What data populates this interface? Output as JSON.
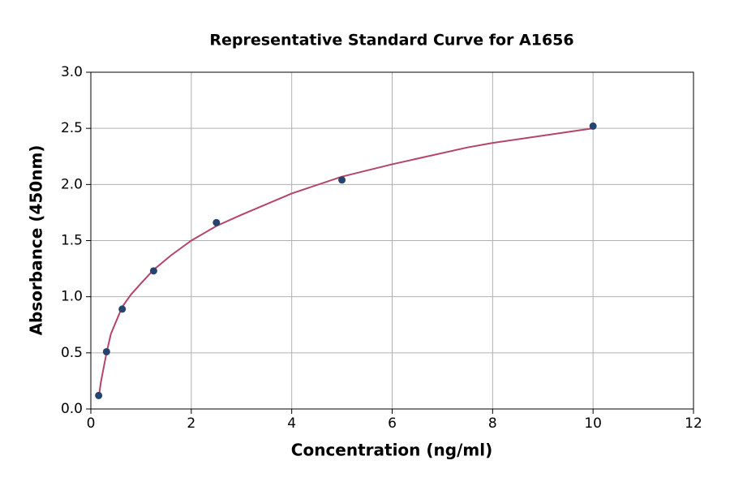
{
  "chart_data": {
    "type": "scatter",
    "title": "Representative Standard Curve for A1656",
    "x_label": "Concentration (ng/ml)",
    "y_label": "Absorbance (450nm)",
    "xlim": [
      0,
      12
    ],
    "xticks": [
      0,
      2,
      4,
      6,
      8,
      10,
      12
    ],
    "ylim": [
      0,
      3
    ],
    "yticks": [
      {
        "value": 0,
        "label": "0.0"
      },
      {
        "value": 0.5,
        "label": "0.5"
      },
      {
        "value": 1,
        "label": "1.0"
      },
      {
        "value": 1.5,
        "label": "1.5"
      },
      {
        "value": 2,
        "label": "2.0"
      },
      {
        "value": 2.5,
        "label": "2.5"
      },
      {
        "value": 3,
        "label": "3.0"
      }
    ],
    "grid": true,
    "series": [
      {
        "type": "line",
        "color": "#b5446b",
        "x": [
          0.156,
          0.2,
          0.3125,
          0.4,
          0.625,
          0.8,
          1.0,
          1.25,
          1.6,
          2.0,
          2.5,
          3.0,
          4.0,
          5.0,
          6.0,
          7.5,
          8.0,
          10.0
        ],
        "values": [
          0.1,
          0.24,
          0.5,
          0.67,
          0.91,
          1.02,
          1.12,
          1.24,
          1.37,
          1.5,
          1.63,
          1.73,
          1.92,
          2.07,
          2.18,
          2.33,
          2.37,
          2.5
        ]
      },
      {
        "type": "scatter",
        "color": "#26456e",
        "x": [
          0.156,
          0.3125,
          0.625,
          1.25,
          2.5,
          5.0,
          10.0
        ],
        "values": [
          0.12,
          0.51,
          0.89,
          1.23,
          1.66,
          2.04,
          2.52
        ]
      }
    ]
  }
}
